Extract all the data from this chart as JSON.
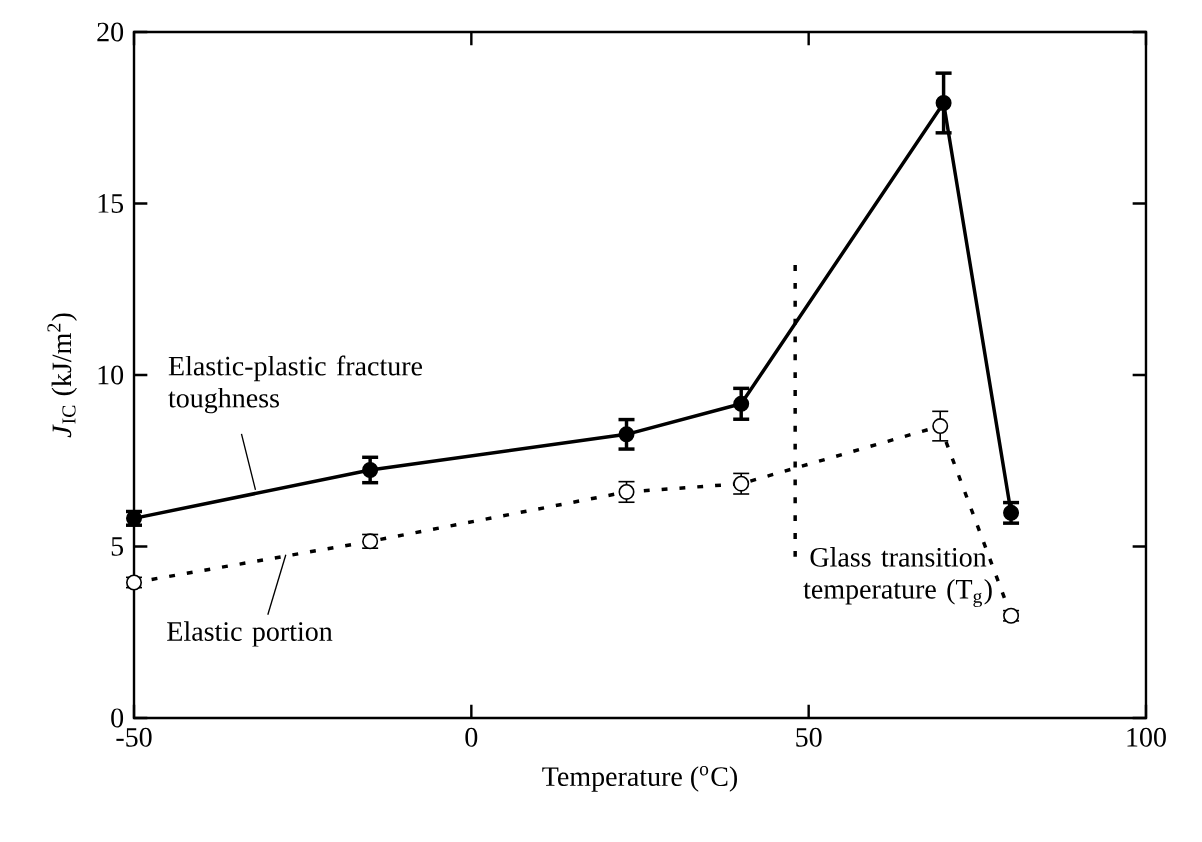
{
  "chart_data": {
    "type": "line",
    "xlabel": "Temperature ($^{o}$C)",
    "ylabel": "*J*$_{IC}$ (kJ/m$^{2}$)",
    "xlim": [
      -50,
      100
    ],
    "xticks": [
      -50,
      0,
      50,
      100
    ],
    "ylim": [
      0,
      20
    ],
    "yticks": [
      0,
      5,
      10,
      15,
      20
    ],
    "grid": false,
    "series": [
      {
        "x": [
          -50,
          -15,
          23,
          40,
          70,
          80
        ],
        "values": [
          5.82,
          7.23,
          8.27,
          9.16,
          17.93,
          5.98
        ],
        "errors": [
          0.2,
          0.37,
          0.43,
          0.45,
          0.87,
          0.3
        ],
        "color": "#000000",
        "line_style": "solid",
        "marker": "circle"
      },
      {
        "x": [
          -50,
          -15,
          23,
          40,
          69.5,
          80
        ],
        "values": [
          3.95,
          5.15,
          6.59,
          6.83,
          8.51,
          2.98
        ],
        "errors": [
          0.15,
          0.2,
          0.3,
          0.3,
          0.43,
          0.15
        ],
        "color": "#000000",
        "line_style": "dotted",
        "marker": "circle"
      },
      {
        "x": [
          48,
          48
        ],
        "values": [
          4.7,
          13.3
        ],
        "color": "#000000",
        "line_style": "dotted",
        "marker": "none"
      }
    ],
    "annotations": [
      {
        "text": "Elastic-plastic fracture toughness",
        "x": -32,
        "y": 6.65
      },
      {
        "text": "Elastic portion",
        "x": -27.5,
        "y": 4.76
      },
      "Glass transition temperature (T$_{g}$)"
    ]
  }
}
